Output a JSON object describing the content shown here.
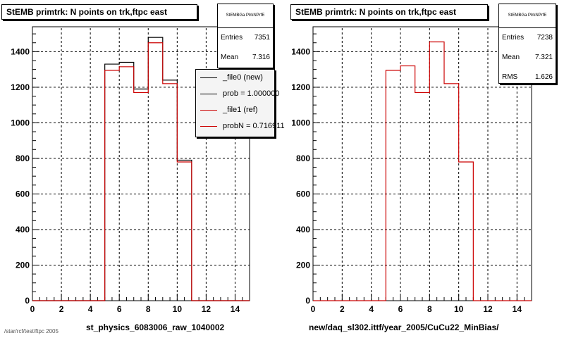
{
  "chart_data": [
    {
      "type": "histogram",
      "title": "StEMB primtrk: N points on trk,ftpc east",
      "xlabel": "st_physics_6083006_raw_1040002",
      "xlim": [
        0,
        15
      ],
      "ylim": [
        0,
        1540
      ],
      "xticks": [
        "0",
        "2",
        "4",
        "6",
        "8",
        "10",
        "12",
        "14"
      ],
      "yticks": [
        "0",
        "200",
        "400",
        "600",
        "800",
        "1000",
        "1200",
        "1400"
      ],
      "grid": true,
      "bin_edges": [
        0,
        1,
        2,
        3,
        4,
        5,
        6,
        7,
        8,
        9,
        10,
        11,
        12,
        13,
        14,
        15
      ],
      "series": [
        {
          "name": "_file0 (new)",
          "color": "#000000",
          "values": [
            0,
            0,
            0,
            0,
            0,
            1330,
            1340,
            1190,
            1480,
            1240,
            790,
            0,
            0,
            0,
            0
          ]
        },
        {
          "name": "_file1 (ref)",
          "color": "#cc0000",
          "values": [
            0,
            0,
            0,
            0,
            0,
            1295,
            1315,
            1170,
            1450,
            1220,
            780,
            0,
            0,
            0,
            0
          ]
        }
      ],
      "stats": {
        "name": "StEMBGa PlrkNPrfE",
        "entries_label": "Entries",
        "entries": "7351",
        "mean_label": "Mean",
        "mean": "7.316"
      },
      "legend": {
        "placement": "top-right",
        "entries": [
          {
            "text": "_file0 (new)",
            "color": "#000000"
          },
          {
            "text": "prob = 1.000000",
            "color": "#000000"
          },
          {
            "text": "_file1 (ref)",
            "color": "#cc0000"
          },
          {
            "text": "probN = 0.716911",
            "color": "#cc0000"
          }
        ]
      }
    },
    {
      "type": "histogram",
      "title": "StEMB primtrk: N points on trk,ftpc east",
      "xlabel": "new/daq_sl302.ittf/year_2005/CuCu22_MinBias/",
      "xlim": [
        0,
        15
      ],
      "ylim": [
        0,
        1540
      ],
      "xticks": [
        "0",
        "2",
        "4",
        "6",
        "8",
        "10",
        "12",
        "14"
      ],
      "yticks": [
        "0",
        "200",
        "400",
        "600",
        "800",
        "1000",
        "1200",
        "1400"
      ],
      "grid": true,
      "bin_edges": [
        0,
        1,
        2,
        3,
        4,
        5,
        6,
        7,
        8,
        9,
        10,
        11,
        12,
        13,
        14,
        15
      ],
      "series": [
        {
          "color": "#cc0000",
          "values": [
            0,
            0,
            0,
            0,
            0,
            1295,
            1320,
            1170,
            1455,
            1220,
            780,
            0,
            0,
            0,
            0
          ]
        }
      ],
      "stats": {
        "name": "StEMBGa PlrkNPrfE",
        "entries_label": "Entries",
        "entries": "7238",
        "mean_label": "Mean",
        "mean": "7.321",
        "rms_label": "RMS",
        "rms": "1.626"
      }
    }
  ],
  "footer": "/star/rcf/test/ftpc 2005"
}
